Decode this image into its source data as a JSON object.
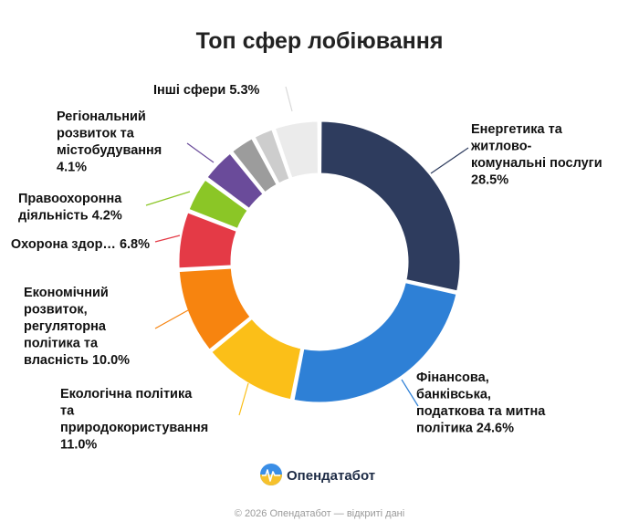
{
  "chart_data": {
    "type": "pie",
    "style": "donut",
    "title": "Топ сфер лобіювання",
    "categories": [
      "Енергетика та житлово-комунальні послуги",
      "Фінансова, банківська, податкова та митна політика",
      "Екологічна політика та природокористування",
      "Економічний розвиток, регуляторна політика та власність",
      "Охорона здор…",
      "Правоохоронна діяльність",
      "Регіональний розвиток та містобудування",
      "",
      "",
      "Інші сфери"
    ],
    "values": [
      28.5,
      24.6,
      11.0,
      10.0,
      6.8,
      4.2,
      4.1,
      3.0,
      2.5,
      5.3
    ],
    "colors": [
      "#2e3c5e",
      "#2e80d6",
      "#fbbf18",
      "#f7840f",
      "#e43a46",
      "#8bc626",
      "#6a4b9a",
      "#9c9c9c",
      "#cdcdcd",
      "#ebebeb"
    ],
    "labels": [
      [
        "Енергетика та",
        "житлово-",
        "комунальні послуги",
        "28.5%"
      ],
      [
        "Фінансова,",
        "банківська,",
        "податкова та митна",
        "політика 24.6%"
      ],
      [
        "Екологічна політика",
        "та",
        "природокористування",
        "11.0%"
      ],
      [
        "Економічний",
        "розвиток,",
        "регуляторна",
        "політика та",
        "власність 10.0%"
      ],
      [
        "Охорона здор… 6.8%"
      ],
      [
        "Правоохоронна",
        "діяльність 4.2%"
      ],
      [
        "Регіональний",
        "розвиток та",
        "містобудування",
        "4.1%"
      ],
      [],
      [],
      [
        "Інші сфери 5.3%"
      ]
    ]
  },
  "brand": {
    "name": "Опендатабот",
    "logo_icon": "opendatabot-logo-icon"
  },
  "footer": {
    "text": "© 2026 Опендатабот — відкриті дані"
  }
}
